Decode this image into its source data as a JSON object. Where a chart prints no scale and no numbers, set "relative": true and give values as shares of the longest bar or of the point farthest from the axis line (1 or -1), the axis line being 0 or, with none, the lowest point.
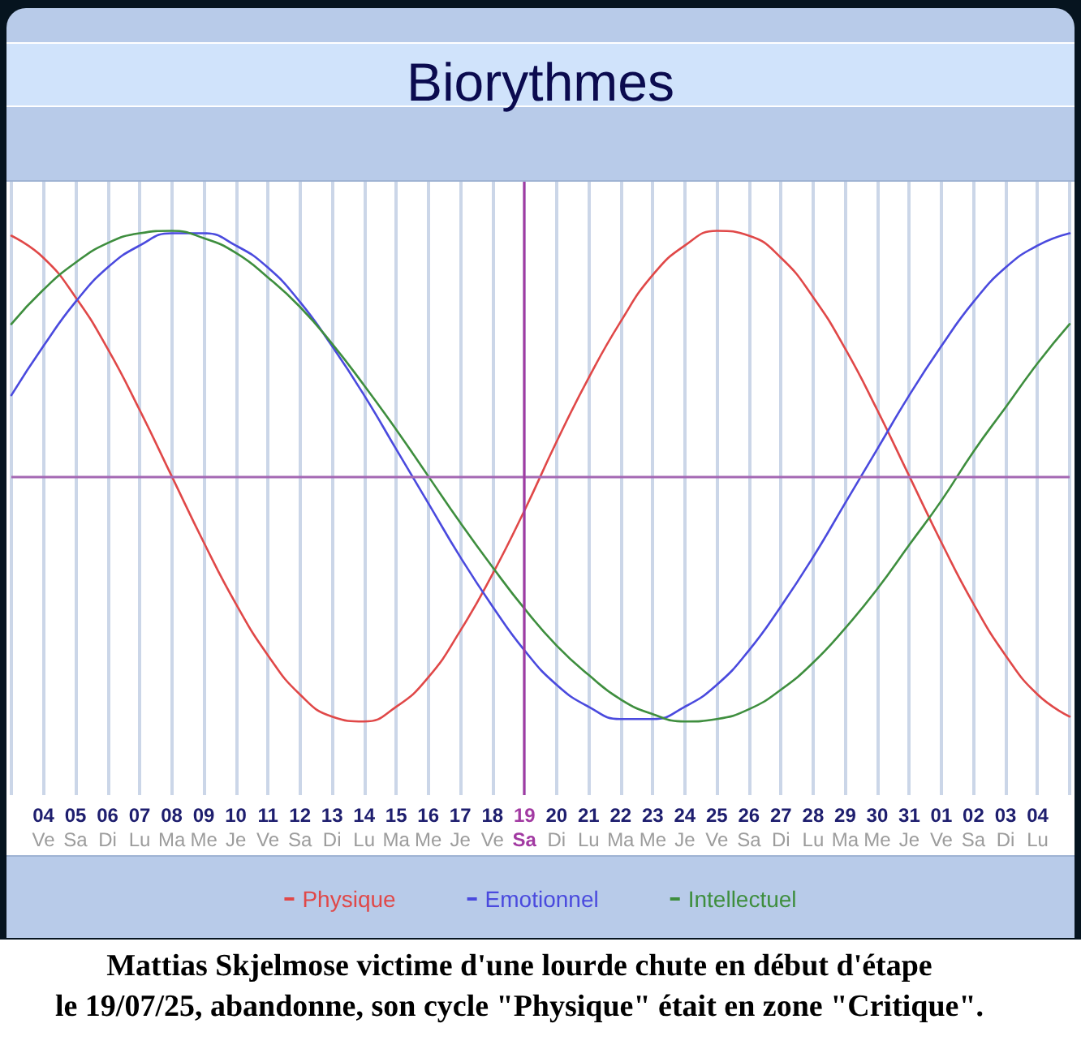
{
  "chart_data": {
    "type": "line",
    "title": "Biorythmes",
    "categories": [
      null,
      "04\nVe",
      "05\nSa",
      "06\nDi",
      "07\nLu",
      "08\nMa",
      "09\nMe",
      "10\nJe",
      "11\nVe",
      "12\nSa",
      "13\nDi",
      "14\nLu",
      "15\nMa",
      "16\nMe",
      "17\nJe",
      "18\nVe",
      "19\nSa",
      "20\nDi",
      "21\nLu",
      "22\nMa",
      "23\nMe",
      "24\nJe",
      "25\nVe",
      "26\nSa",
      "27\nDi",
      "28\nLu",
      "29\nMa",
      "30\nMe",
      "31\nJe",
      "01\nVe",
      "02\nSa",
      "03\nDi",
      "04\nLu",
      null
    ],
    "relative": true,
    "series": [
      {
        "name": "Physique",
        "color": "#e04848",
        "values": [
          0.98,
          0.89,
          0.73,
          0.52,
          0.27,
          0,
          -0.27,
          -0.52,
          -0.73,
          -0.89,
          -0.98,
          -1,
          -0.94,
          -0.82,
          -0.63,
          -0.4,
          -0.14,
          0.14,
          0.4,
          0.63,
          0.82,
          0.94,
          1,
          0.98,
          0.89,
          0.73,
          0.52,
          0.27,
          0,
          -0.27,
          -0.52,
          -0.73,
          -0.89,
          -0.98
        ]
      },
      {
        "name": "Emotionnel",
        "color": "#4a4ade",
        "values": [
          0.33,
          0.53,
          0.71,
          0.85,
          0.94,
          0.99,
          0.99,
          0.94,
          0.85,
          0.71,
          0.53,
          0.33,
          0.11,
          -0.11,
          -0.33,
          -0.53,
          -0.71,
          -0.85,
          -0.94,
          -0.99,
          -0.99,
          -0.94,
          -0.85,
          -0.71,
          -0.53,
          -0.33,
          -0.11,
          0.11,
          0.33,
          0.53,
          0.71,
          0.85,
          0.94,
          0.99
        ]
      },
      {
        "name": "Intellectuel",
        "color": "#3e8e3e",
        "values": [
          0.62,
          0.76,
          0.87,
          0.95,
          0.99,
          1,
          0.97,
          0.91,
          0.81,
          0.69,
          0.54,
          0.37,
          0.19,
          0,
          -0.19,
          -0.37,
          -0.54,
          -0.69,
          -0.81,
          -0.91,
          -0.97,
          -1,
          -0.99,
          -0.95,
          -0.87,
          -0.76,
          -0.62,
          -0.46,
          -0.28,
          -0.1,
          0.1,
          0.28,
          0.46,
          0.62
        ]
      }
    ],
    "ref_lines": [
      {
        "axis": "y",
        "value": 0,
        "color": "#a468b4"
      },
      {
        "axis": "x",
        "value": "19\nSa",
        "color": "#a23aa2"
      }
    ],
    "grid": "x",
    "legend": "bottom",
    "marker": "none",
    "annotations": [
      "Mattias Skjelmose victime d'une lourde chute en début d'étape\nle 19/07/25, abandonne, son cycle \"Physique\" était en zone \"Critique\"."
    ]
  }
}
